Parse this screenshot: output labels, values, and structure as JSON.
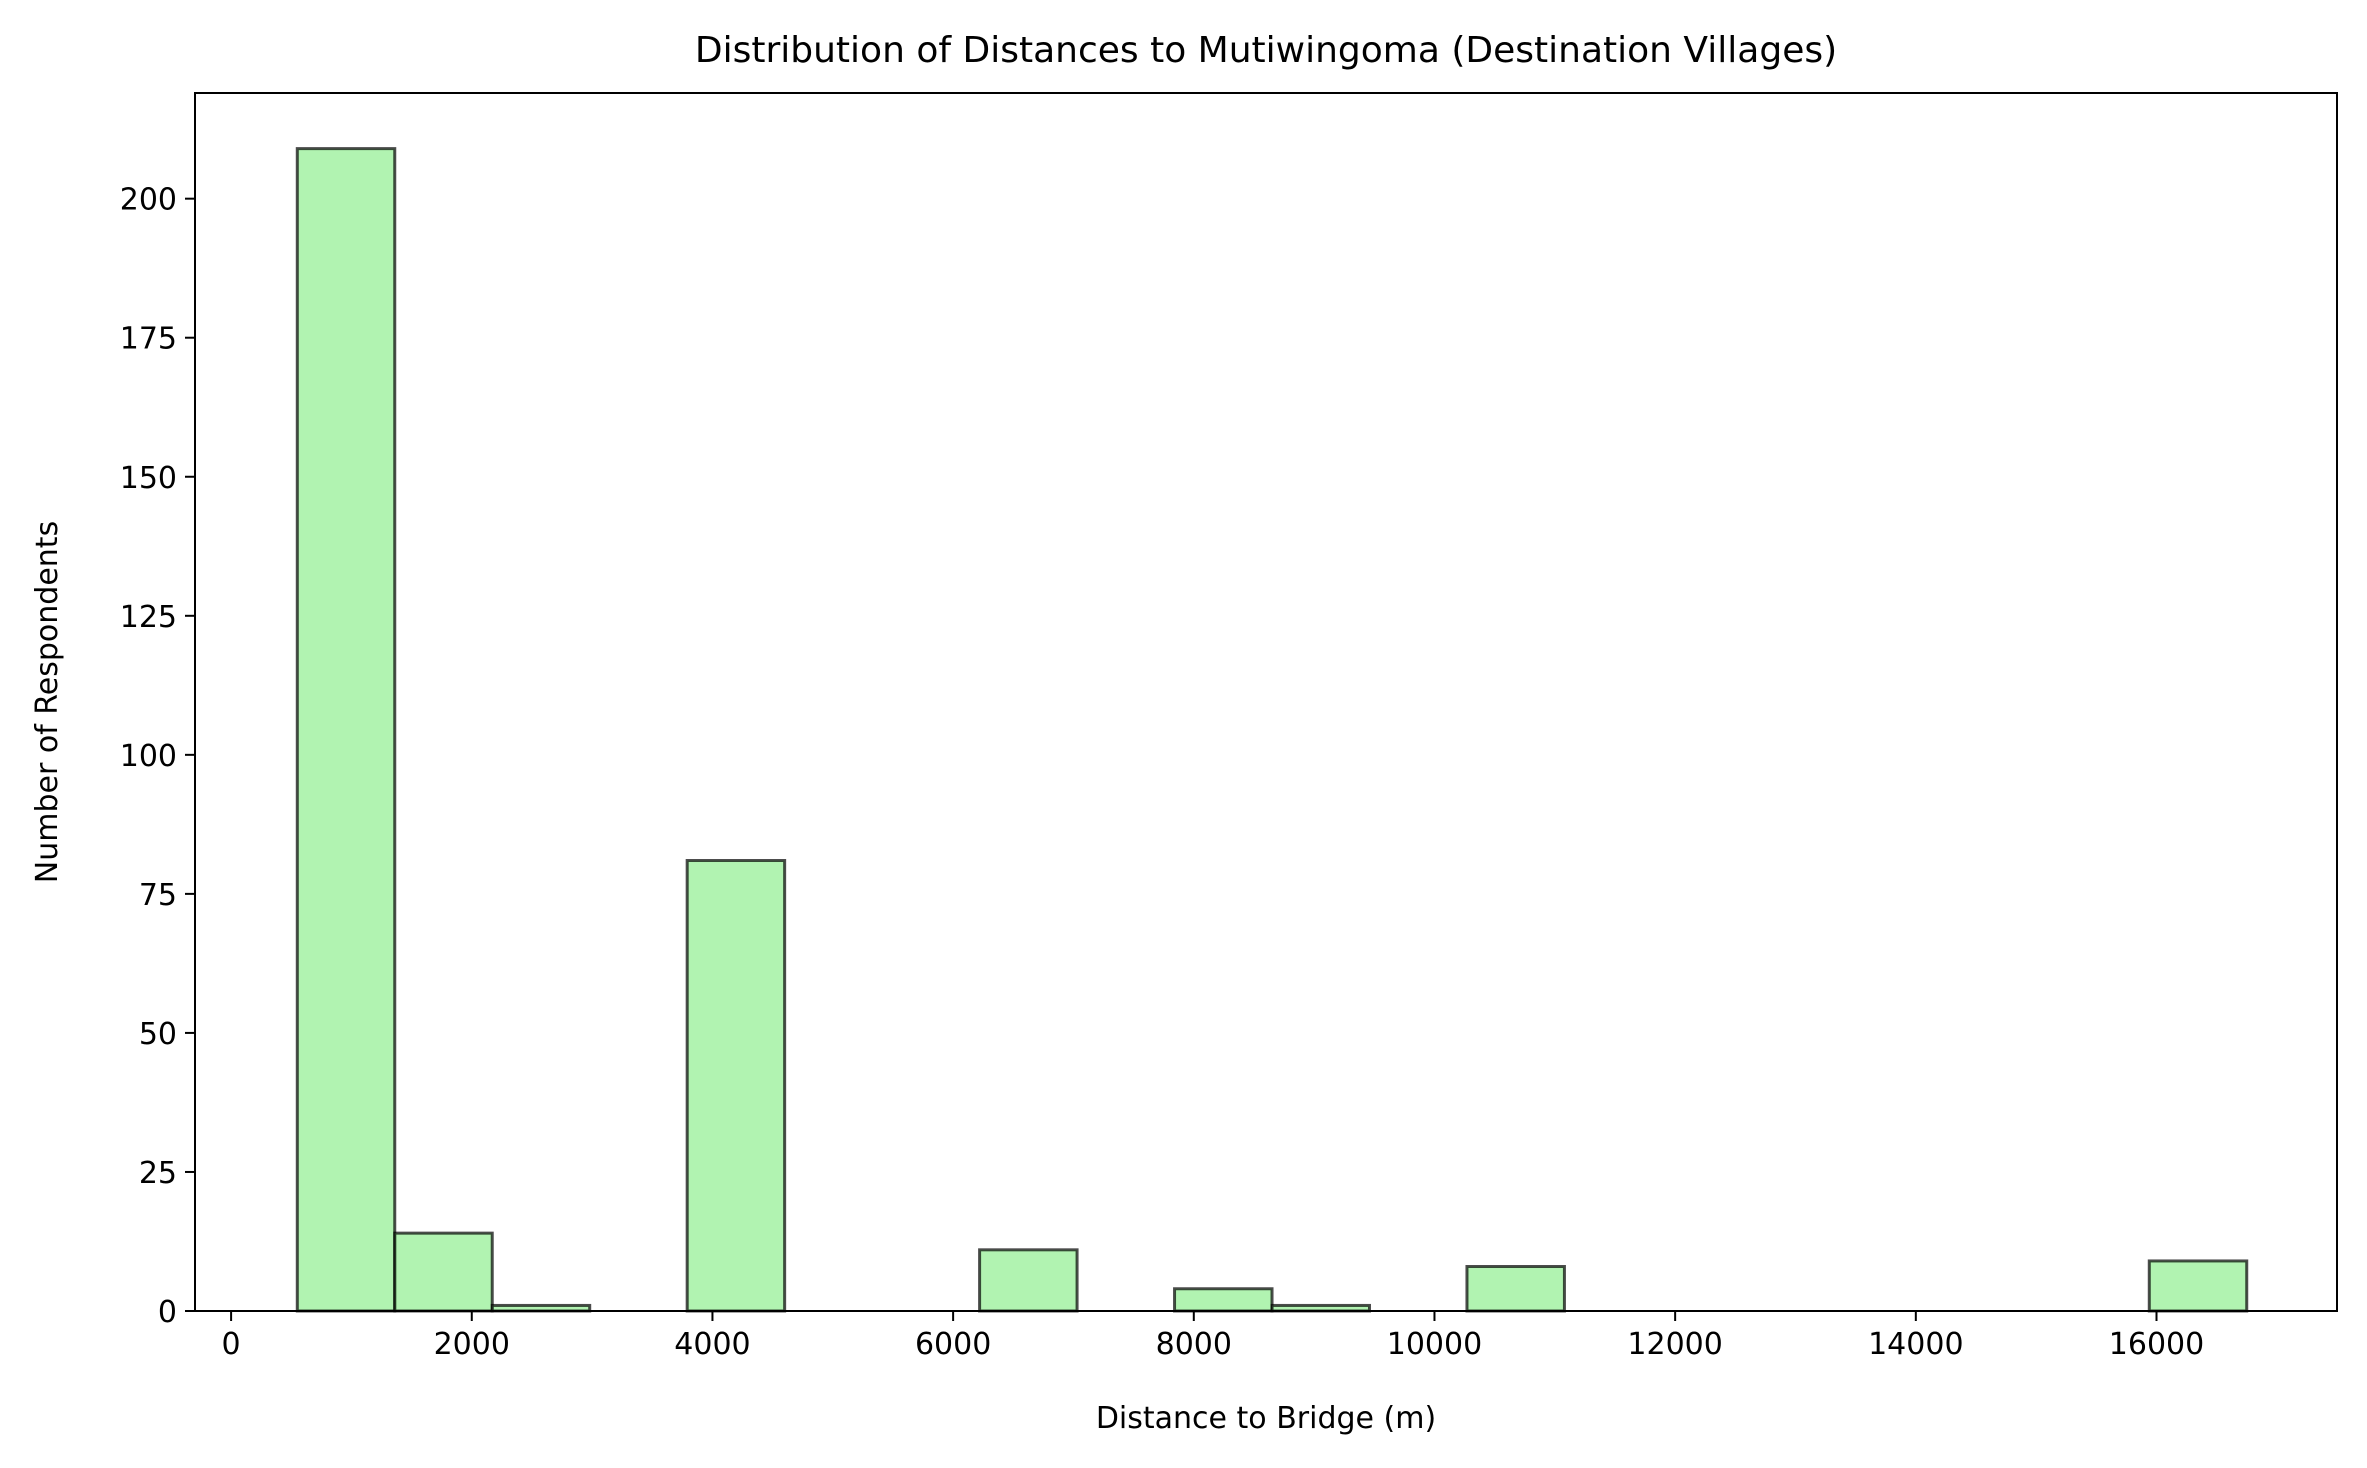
{
  "chart_data": {
    "type": "bar",
    "subtype": "histogram",
    "title": "Distribution of Distances to Mutiwingoma (Destination Villages)",
    "xlabel": "Distance to Bridge (m)",
    "ylabel": "Number of Respondents",
    "xlim": [
      -300,
      17500
    ],
    "ylim": [
      0,
      219
    ],
    "grid": false,
    "bar_color": "#90ee90",
    "bar_alpha": 0.7,
    "edge_color": "#000000",
    "xticks": [
      0,
      2000,
      4000,
      6000,
      8000,
      10000,
      12000,
      14000,
      16000
    ],
    "xtick_labels": [
      "0",
      "2000",
      "4000",
      "6000",
      "8000",
      "10000",
      "12000",
      "14000",
      "16000"
    ],
    "yticks": [
      0,
      25,
      50,
      75,
      100,
      125,
      150,
      175,
      200
    ],
    "ytick_labels": [
      "0",
      "25",
      "50",
      "75",
      "100",
      "125",
      "150",
      "175",
      "200"
    ],
    "bins": [
      {
        "x0": 550,
        "x1": 1360,
        "count": 209
      },
      {
        "x0": 1360,
        "x1": 2170,
        "count": 14
      },
      {
        "x0": 2170,
        "x1": 2980,
        "count": 1
      },
      {
        "x0": 2980,
        "x1": 3790,
        "count": 0
      },
      {
        "x0": 3790,
        "x1": 4600,
        "count": 81
      },
      {
        "x0": 4600,
        "x1": 5410,
        "count": 0
      },
      {
        "x0": 5410,
        "x1": 6220,
        "count": 0
      },
      {
        "x0": 6220,
        "x1": 7030,
        "count": 11
      },
      {
        "x0": 7030,
        "x1": 7840,
        "count": 0
      },
      {
        "x0": 7840,
        "x1": 8650,
        "count": 4
      },
      {
        "x0": 8650,
        "x1": 9460,
        "count": 1
      },
      {
        "x0": 9460,
        "x1": 10270,
        "count": 0
      },
      {
        "x0": 10270,
        "x1": 11080,
        "count": 8
      },
      {
        "x0": 11080,
        "x1": 11890,
        "count": 0
      },
      {
        "x0": 11890,
        "x1": 12700,
        "count": 0
      },
      {
        "x0": 12700,
        "x1": 13510,
        "count": 0
      },
      {
        "x0": 13510,
        "x1": 14320,
        "count": 0
      },
      {
        "x0": 14320,
        "x1": 15130,
        "count": 0
      },
      {
        "x0": 15130,
        "x1": 15940,
        "count": 0
      },
      {
        "x0": 15940,
        "x1": 16750,
        "count": 9
      }
    ]
  }
}
